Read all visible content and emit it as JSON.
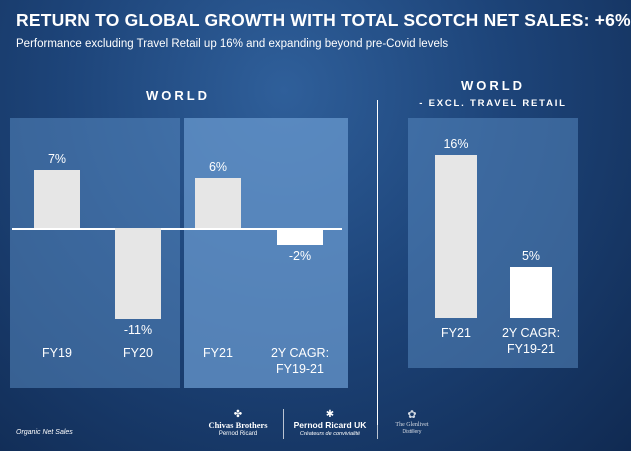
{
  "title": "RETURN TO GLOBAL GROWTH WITH TOTAL SCOTCH NET SALES: +6%",
  "subtitle": "Performance excluding Travel Retail up 16% and expanding beyond pre-Covid levels",
  "sections": {
    "world": "WORLD",
    "world_excl": "WORLD",
    "world_excl_sub": "- EXCL. TRAVEL RETAIL"
  },
  "footnote": "Organic Net Sales",
  "logos": {
    "chivas": "Chivas Brothers",
    "chivas_sub": "Pernod Ricard",
    "pernod": "Pernod Ricard UK",
    "pernod_sub": "Créateurs de convivialité",
    "third": "The Glenlivet",
    "third_sub": "Distillery"
  },
  "colors": {
    "background": "#1d4479",
    "bar": "#e6e6e6",
    "bar_highlight": "#ffffff",
    "panel": "#5686be"
  },
  "chart_data": [
    {
      "type": "bar",
      "title": "WORLD",
      "categories": [
        "FY19",
        "FY20",
        "FY21",
        "2Y CAGR: FY19-21"
      ],
      "values": [
        7,
        -11,
        6,
        -2
      ],
      "value_labels": [
        "7%",
        "-11%",
        "6%",
        "-2%"
      ],
      "unit": "%"
    },
    {
      "type": "bar",
      "title": "WORLD - EXCL. TRAVEL RETAIL",
      "categories": [
        "FY21",
        "2Y CAGR: FY19-21"
      ],
      "values": [
        16,
        5
      ],
      "value_labels": [
        "16%",
        "5%"
      ],
      "unit": "%"
    }
  ]
}
